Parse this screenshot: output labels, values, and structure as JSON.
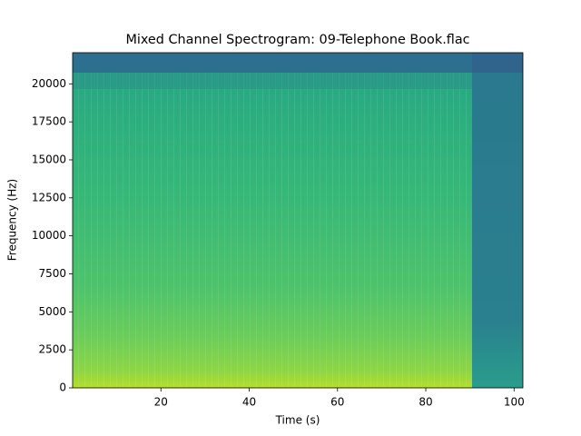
{
  "chart_data": {
    "type": "spectrogram",
    "title": "Mixed Channel Spectrogram: 09-Telephone Book.flac",
    "xlabel": "Time (s)",
    "ylabel": "Frequency (Hz)",
    "xlim": [
      0,
      102
    ],
    "xticks": [
      20,
      40,
      60,
      80,
      100
    ],
    "ylim": [
      0,
      22050
    ],
    "yticks": [
      0,
      2500,
      5000,
      7500,
      10000,
      12500,
      15000,
      17500,
      20000
    ]
  }
}
